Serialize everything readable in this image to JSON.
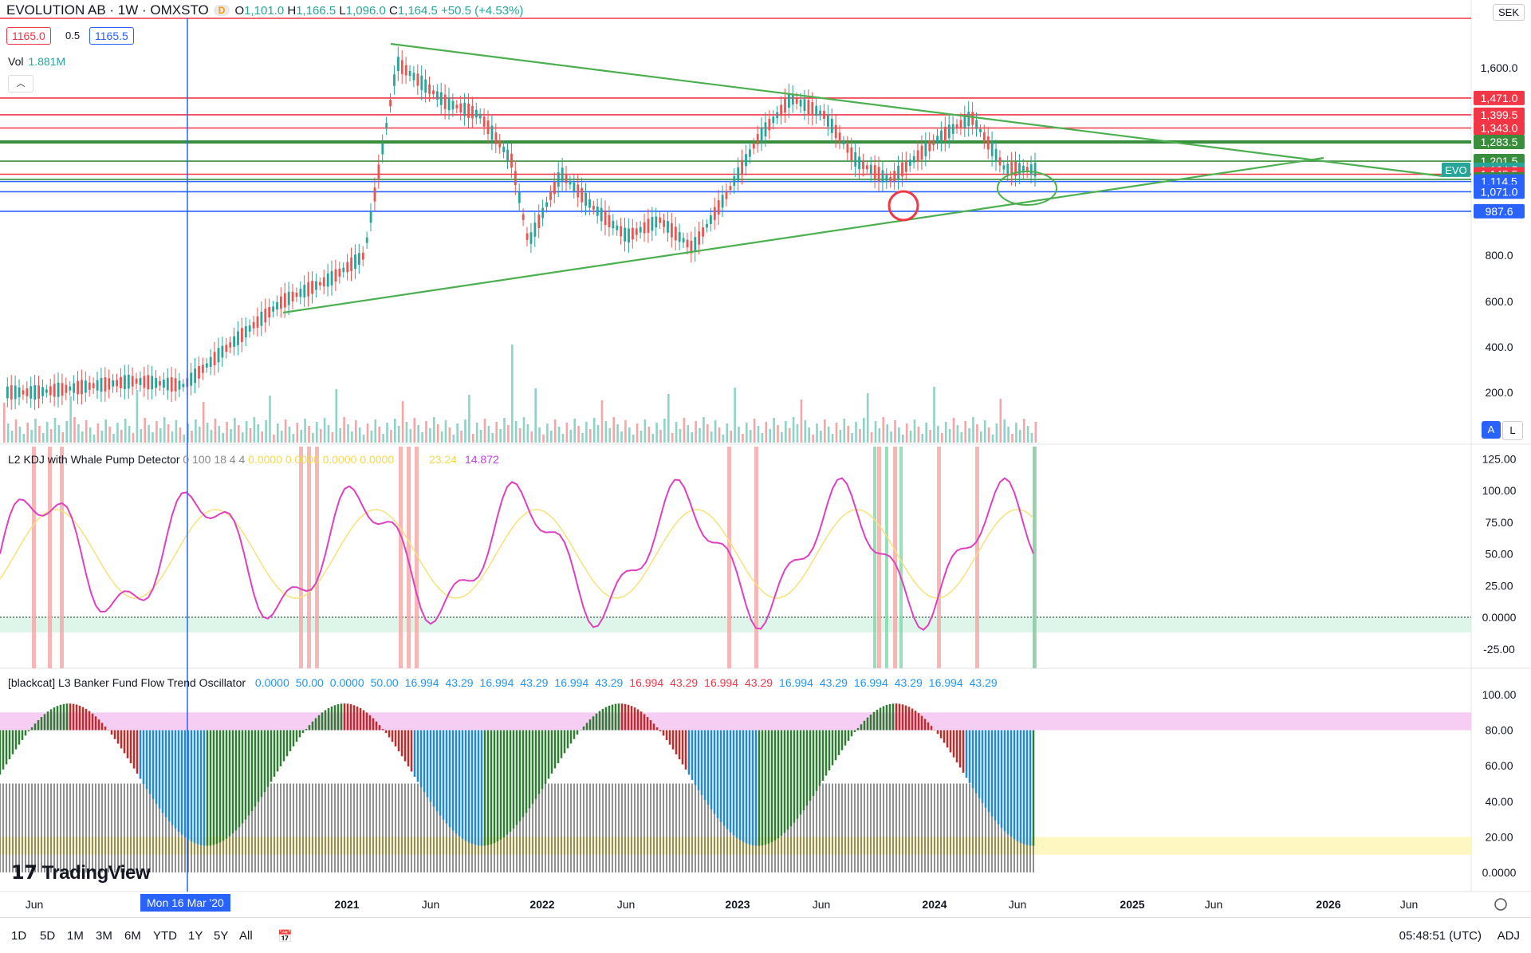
{
  "header": {
    "symbol": "EVOLUTION AB · 1W · OMXSTO",
    "d_badge": "D",
    "o_label": "O",
    "o_val": "1,101.0",
    "h_label": "H",
    "h_val": "1,166.5",
    "l_label": "L",
    "l_val": "1,096.0",
    "c_label": "C",
    "c_val": "1,164.5 +50.5 (+4.53%)",
    "bid": "1165.0",
    "spread": "0.5",
    "ask": "1165.5",
    "vol_label": "Vol",
    "vol_val": "1.881M",
    "currency": "SEK",
    "scale_a": "A",
    "scale_l": "L"
  },
  "indicators": {
    "kdj_title": "L2 KDJ with Whale Pump Detector",
    "kdj_params": "0 100 18 4 4",
    "kdj_vals_yellow": "0.0000  0.0000  0.0000  0.0000",
    "kdj_k": "23.24",
    "kdj_d": "14.872",
    "bf_title": "[blackcat] L3 Banker Fund Flow Trend Oscillator",
    "bf_vals": [
      "0.0000",
      "50.00",
      "0.0000",
      "50.00",
      "16.994",
      "43.29",
      "16.994",
      "43.29",
      "16.994",
      "43.29",
      "16.994",
      "43.29",
      "16.994",
      "43.29",
      "16.994",
      "43.29",
      "16.994",
      "43.29",
      "16.994",
      "43.29"
    ]
  },
  "price_axis": [
    "1,600.0",
    "400.0",
    "600.0",
    "800.0",
    "200.0"
  ],
  "price_labels": [
    {
      "text": "1,471.0",
      "color": "#f23645",
      "price": 1471
    },
    {
      "text": "1,399.5",
      "color": "#f23645",
      "price": 1399.5
    },
    {
      "text": "1,343.0",
      "color": "#f23645",
      "price": 1343
    },
    {
      "text": "1,283.5",
      "color": "#388e3c",
      "price": 1283.5
    },
    {
      "text": "1,201.5",
      "color": "#388e3c",
      "price": 1201.5
    },
    {
      "text": "1,164.5",
      "color": "#26a69a",
      "price": 1164.5
    },
    {
      "text": "1,145.5",
      "color": "#f23645",
      "price": 1145.5
    },
    {
      "text": "1,123.5",
      "color": "#388e3c",
      "price": 1123.5
    },
    {
      "text": "1,114.5",
      "color": "#2962ff",
      "price": 1114.5
    },
    {
      "text": "1,071.0",
      "color": "#2962ff",
      "price": 1071
    },
    {
      "text": "987.6",
      "color": "#2962ff",
      "price": 987.6
    }
  ],
  "evo_tag": "EVO",
  "kdj_axis": [
    "125.00",
    "100.00",
    "75.00",
    "50.00",
    "25.00",
    "0.0000",
    "-25.00"
  ],
  "bf_axis": [
    "100.00",
    "80.00",
    "60.00",
    "40.00",
    "20.00",
    "0.0000"
  ],
  "time_axis": [
    "Jun",
    "2021",
    "Jun",
    "2022",
    "Jun",
    "2023",
    "Jun",
    "2024",
    "Jun",
    "2025",
    "Jun",
    "2026",
    "Jun"
  ],
  "crosshair_date": "Mon 16 Mar '20",
  "timeframes": [
    "1D",
    "5D",
    "1M",
    "3M",
    "6M",
    "YTD",
    "1Y",
    "5Y",
    "All"
  ],
  "clock": "05:48:51 (UTC)",
  "adj": "ADJ",
  "watermark": "TradingView",
  "chart_data": {
    "type": "line",
    "title": "EVOLUTION AB · 1W · OMXSTO",
    "price_series": {
      "name": "EVOLUTION AB",
      "x": [
        "2019-06",
        "2019-12",
        "2020-03",
        "2020-06",
        "2020-09",
        "2020-12",
        "2021-02",
        "2021-04",
        "2021-07",
        "2021-09",
        "2021-11",
        "2021-12",
        "2022-02",
        "2022-04",
        "2022-06",
        "2022-08",
        "2022-10",
        "2022-12",
        "2023-02",
        "2023-04",
        "2023-06",
        "2023-08",
        "2023-10",
        "2024-01",
        "2024-03",
        "2024-05",
        "2024-07"
      ],
      "y": [
        200,
        250,
        230,
        420,
        600,
        700,
        800,
        1620,
        1450,
        1400,
        1200,
        850,
        1150,
        1000,
        880,
        950,
        830,
        1050,
        1300,
        1470,
        1400,
        1200,
        1120,
        1300,
        1390,
        1170,
        1164.5
      ]
    },
    "kdj": {
      "ylim": [
        -35,
        130
      ]
    },
    "banker_fund": {
      "ylim": [
        -5,
        105
      ]
    }
  }
}
